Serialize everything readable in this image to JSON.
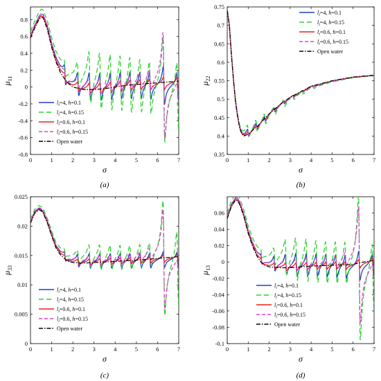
{
  "figure": {
    "background": "#ffffff"
  },
  "style": {
    "colors": {
      "l4_h01": "#1f3fbf",
      "l4_h015": "#2bd12b",
      "l06_h01": "#e32020",
      "l06_h015": "#e040d0",
      "open_water": "#000000"
    }
  },
  "legend_entries": [
    {
      "key": "l4_h01",
      "l": "4",
      "h": "0.1",
      "dash": "solid"
    },
    {
      "key": "l4_h015",
      "l": "4",
      "h": "0.15",
      "dash": "long-dash"
    },
    {
      "key": "l06_h01",
      "l": "0.6",
      "h": "0.1",
      "dash": "solid"
    },
    {
      "key": "l06_h015",
      "l": "0.6",
      "h": "0.15",
      "dash": "dash"
    },
    {
      "key": "open_water",
      "label": "Open water",
      "dash": "dash-dot"
    }
  ],
  "chart_data": [
    {
      "panel": "a",
      "caption": "(a)",
      "type": "line",
      "ylabel": "μ",
      "ylabel_sub": "11",
      "xlabel": "σ",
      "xlim": [
        0,
        7
      ],
      "ylim": [
        -0.8,
        0.95
      ],
      "xticks": [
        0,
        1,
        2,
        3,
        4,
        5,
        6,
        7
      ],
      "yticks": [
        -0.8,
        -0.6,
        -0.4,
        -0.2,
        0,
        0.2,
        0.4,
        0.6,
        0.8
      ],
      "legend_position": "bottom-left",
      "grid": false,
      "open_water": {
        "x": [
          0,
          0.2,
          0.4,
          0.5,
          0.6,
          0.8,
          1.0,
          1.2,
          1.4,
          1.6,
          1.8,
          2.0,
          2.5,
          3.0,
          3.5,
          4.0,
          4.5,
          5.0,
          5.5,
          6.0,
          6.5,
          7.0
        ],
        "y": [
          0.58,
          0.7,
          0.8,
          0.83,
          0.82,
          0.68,
          0.47,
          0.3,
          0.18,
          0.1,
          0.04,
          0.0,
          -0.03,
          -0.03,
          -0.02,
          0.0,
          0.02,
          0.03,
          0.04,
          0.05,
          0.06,
          0.07
        ]
      },
      "resonance_x": [
        1.63,
        2.25,
        2.8,
        3.3,
        3.8,
        4.27,
        4.73,
        5.2,
        5.65,
        6.3,
        6.95
      ],
      "series_amplitudes": {
        "l4_h01": [
          0.12,
          0.15,
          0.18,
          0.18,
          0.18,
          0.18,
          0.18,
          0.18,
          0.18,
          0.25,
          0.18
        ],
        "l4_h015": [
          0.1,
          0.18,
          0.35,
          0.38,
          0.38,
          0.38,
          0.38,
          0.36,
          0.36,
          0.7,
          0.45
        ],
        "l06_h01": [
          0.05,
          0.06,
          0.07,
          0.07,
          0.07,
          0.07,
          0.07,
          0.07,
          0.07,
          0.08,
          0.07
        ],
        "l06_h015": [
          0.06,
          0.08,
          0.1,
          0.1,
          0.1,
          0.1,
          0.1,
          0.12,
          0.15,
          0.7,
          0.12
        ]
      }
    },
    {
      "panel": "b",
      "caption": "(b)",
      "type": "line",
      "ylabel": "μ",
      "ylabel_sub": "22",
      "xlabel": "σ",
      "xlim": [
        0,
        7
      ],
      "ylim": [
        0.35,
        0.75
      ],
      "xticks": [
        0,
        1,
        2,
        3,
        4,
        5,
        6,
        7
      ],
      "yticks": [
        0.35,
        0.4,
        0.45,
        0.5,
        0.55,
        0.6,
        0.65,
        0.7,
        0.75
      ],
      "legend_position": "top-right",
      "grid": false,
      "open_water": {
        "x": [
          0,
          0.1,
          0.2,
          0.3,
          0.4,
          0.5,
          0.6,
          0.7,
          0.8,
          1.0,
          1.2,
          1.5,
          2.0,
          2.5,
          3.0,
          3.5,
          4.0,
          5.0,
          6.0,
          7.0
        ],
        "y": [
          0.74,
          0.7,
          0.62,
          0.55,
          0.49,
          0.45,
          0.42,
          0.405,
          0.4,
          0.405,
          0.415,
          0.43,
          0.46,
          0.485,
          0.505,
          0.52,
          0.535,
          0.55,
          0.56,
          0.565
        ]
      },
      "resonance_x": [
        1.0,
        1.4,
        1.8,
        2.25,
        2.7,
        3.15,
        3.6,
        4.1
      ],
      "series_amplitudes": {
        "l4_h01": [
          0.012,
          0.012,
          0.01,
          0.008,
          0.006,
          0.004,
          0.003,
          0.002
        ],
        "l4_h015": [
          0.02,
          0.02,
          0.018,
          0.015,
          0.012,
          0.008,
          0.006,
          0.004
        ],
        "l06_h01": [
          0.005,
          0.005,
          0.004,
          0.003,
          0.002,
          0.002,
          0.001,
          0.001
        ],
        "l06_h015": [
          0.008,
          0.008,
          0.006,
          0.005,
          0.004,
          0.003,
          0.002,
          0.001
        ]
      }
    },
    {
      "panel": "c",
      "caption": "(c)",
      "type": "line",
      "ylabel": "μ",
      "ylabel_sub": "33",
      "xlabel": "σ",
      "xlim": [
        0,
        7
      ],
      "ylim": [
        0,
        0.025
      ],
      "xticks": [
        0,
        1,
        2,
        3,
        4,
        5,
        6,
        7
      ],
      "yticks": [
        0,
        0.005,
        0.01,
        0.015,
        0.02,
        0.025
      ],
      "legend_position": "bottom-left",
      "grid": false,
      "open_water": {
        "x": [
          0,
          0.2,
          0.4,
          0.5,
          0.6,
          0.8,
          1.0,
          1.2,
          1.4,
          1.6,
          1.8,
          2.0,
          2.5,
          3.0,
          4.0,
          5.0,
          6.0,
          7.0
        ],
        "y": [
          0.0205,
          0.0222,
          0.0228,
          0.0226,
          0.0222,
          0.0205,
          0.0183,
          0.0163,
          0.0152,
          0.0145,
          0.014,
          0.0138,
          0.0137,
          0.0138,
          0.014,
          0.0142,
          0.0145,
          0.0148
        ]
      },
      "resonance_x": [
        1.63,
        2.25,
        2.8,
        3.3,
        3.8,
        4.27,
        4.73,
        5.2,
        5.65,
        6.3,
        6.95
      ],
      "series_amplitudes": {
        "l4_h01": [
          0.0008,
          0.0012,
          0.0014,
          0.0014,
          0.0014,
          0.0014,
          0.0014,
          0.0014,
          0.0014,
          0.0015,
          0.0013
        ],
        "l4_h015": [
          0.0006,
          0.0012,
          0.0022,
          0.0024,
          0.0024,
          0.0024,
          0.0024,
          0.0024,
          0.0024,
          0.011,
          0.007
        ],
        "l06_h01": [
          0.0004,
          0.0005,
          0.0006,
          0.0006,
          0.0006,
          0.0006,
          0.0006,
          0.0006,
          0.0006,
          0.0007,
          0.0006
        ],
        "l06_h015": [
          0.0005,
          0.0007,
          0.0009,
          0.0009,
          0.0009,
          0.0009,
          0.0009,
          0.001,
          0.0012,
          0.0095,
          0.001
        ]
      }
    },
    {
      "panel": "d",
      "caption": "(d)",
      "type": "line",
      "ylabel": "μ",
      "ylabel_sub": "13",
      "xlabel": "σ",
      "xlim": [
        0,
        7
      ],
      "ylim": [
        -0.1,
        0.08
      ],
      "xticks": [
        0,
        1,
        2,
        3,
        4,
        5,
        6,
        7
      ],
      "yticks": [
        -0.1,
        -0.08,
        -0.06,
        -0.04,
        -0.02,
        0,
        0.02,
        0.04,
        0.06
      ],
      "legend_position": "bottom-left",
      "grid": false,
      "open_water": {
        "x": [
          0,
          0.2,
          0.4,
          0.5,
          0.6,
          0.8,
          1.0,
          1.2,
          1.4,
          1.6,
          1.8,
          2.0,
          2.5,
          3.0,
          3.5,
          4.0,
          5.0,
          6.0,
          6.5,
          7.0
        ],
        "y": [
          0.053,
          0.068,
          0.076,
          0.075,
          0.07,
          0.055,
          0.035,
          0.02,
          0.008,
          0.0,
          -0.004,
          -0.006,
          -0.007,
          -0.007,
          -0.006,
          -0.005,
          -0.004,
          -0.003,
          0.0,
          0.002
        ]
      },
      "resonance_x": [
        1.63,
        2.25,
        2.8,
        3.3,
        3.8,
        4.27,
        4.73,
        5.2,
        5.65,
        6.3,
        6.95
      ],
      "series_amplitudes": {
        "l4_h01": [
          0.006,
          0.01,
          0.014,
          0.016,
          0.016,
          0.016,
          0.016,
          0.016,
          0.016,
          0.02,
          0.014
        ],
        "l4_h015": [
          0.005,
          0.012,
          0.025,
          0.03,
          0.03,
          0.03,
          0.03,
          0.03,
          0.03,
          0.1,
          0.045
        ],
        "l06_h01": [
          0.003,
          0.004,
          0.005,
          0.005,
          0.005,
          0.005,
          0.005,
          0.005,
          0.005,
          0.006,
          0.005
        ],
        "l06_h015": [
          0.004,
          0.006,
          0.008,
          0.008,
          0.008,
          0.008,
          0.008,
          0.009,
          0.01,
          0.08,
          0.01
        ]
      }
    }
  ]
}
